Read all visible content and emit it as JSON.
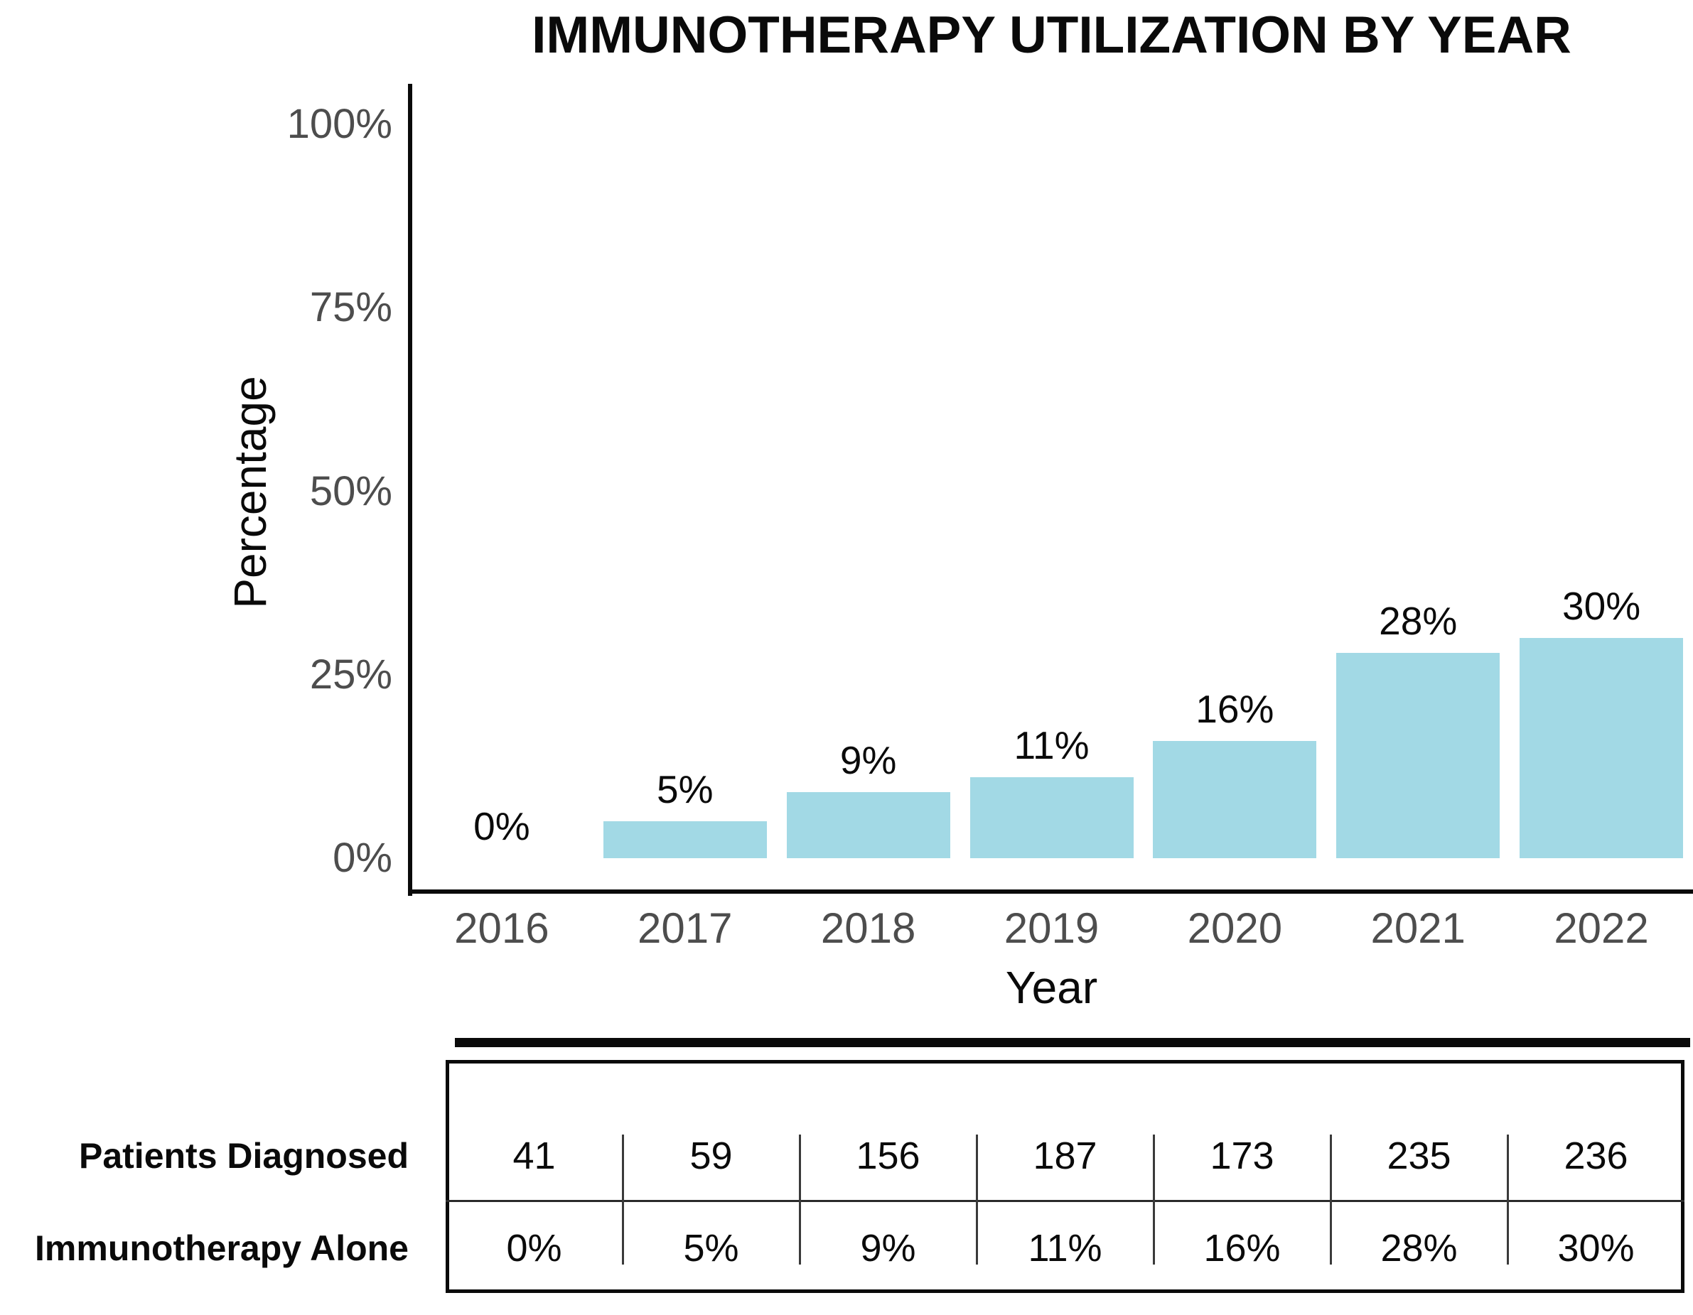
{
  "title": "IMMUNOTHERAPY UTILIZATION BY YEAR",
  "chart_data": {
    "type": "bar",
    "title": "IMMUNOTHERAPY UTILIZATION BY YEAR",
    "categories": [
      "2016",
      "2017",
      "2018",
      "2019",
      "2020",
      "2021",
      "2022"
    ],
    "values": [
      0,
      5,
      9,
      11,
      16,
      28,
      30
    ],
    "bar_labels": [
      "0%",
      "5%",
      "9%",
      "11%",
      "16%",
      "28%",
      "30%"
    ],
    "xlabel": "Year",
    "ylabel": "Percentage",
    "ylim": [
      0,
      100
    ],
    "ytick_values": [
      0,
      25,
      50,
      75,
      100
    ],
    "ytick_labels": [
      "0%",
      "25%",
      "50%",
      "75%",
      "100%"
    ],
    "grid": false,
    "legend_position": "none",
    "bar_color": "#A2D9E5"
  },
  "table": {
    "rows": [
      {
        "label": "Patients Diagnosed",
        "values": [
          "41",
          "59",
          "156",
          "187",
          "173",
          "235",
          "236"
        ]
      },
      {
        "label": "Immunotherapy Alone",
        "values": [
          "0%",
          "5%",
          "9%",
          "11%",
          "16%",
          "28%",
          "30%"
        ]
      }
    ]
  },
  "colors": {
    "bar": "#A2D9E5",
    "tick_text": "#4d4d4d",
    "axis": "#0a0a0a"
  }
}
